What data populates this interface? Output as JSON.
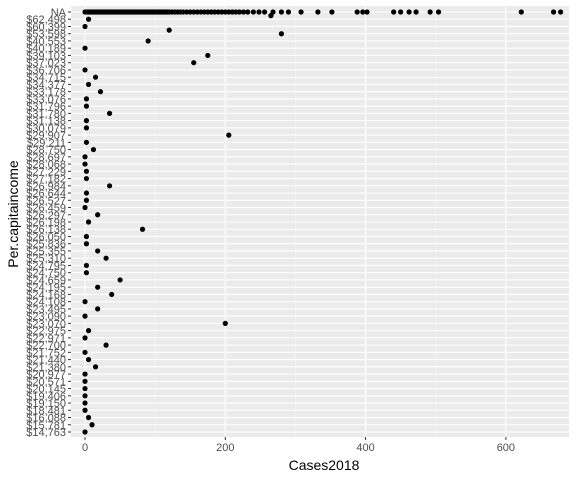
{
  "chart_data": {
    "type": "scatter",
    "xlabel": "Cases2018",
    "ylabel": "Per.capitaincome",
    "xlim": [
      -20,
      690
    ],
    "x_ticks": [
      0,
      200,
      400,
      600
    ],
    "y_categories": [
      "$14,763",
      "$15,781",
      "$16,088",
      "$18,481",
      "$19,150",
      "$19,406",
      "$20,145",
      "$20,571",
      "$20,977",
      "$21,380",
      "$21,440",
      "$21,752",
      "$22,700",
      "$22,971",
      "$22,975",
      "$23,070",
      "$23,090",
      "$23,495",
      "$24,108",
      "$24,168",
      "$24,195",
      "$24,659",
      "$24,750",
      "$24,795",
      "$25,310",
      "$25,355",
      "$25,836",
      "$26,050",
      "$26,138",
      "$26,198",
      "$26,297",
      "$26,459",
      "$26,527",
      "$26,644",
      "$26,984",
      "$27,182",
      "$27,229",
      "$28,068",
      "$28,697",
      "$28,750",
      "$29,211",
      "$29,907",
      "$30,079",
      "$31,138",
      "$31,780",
      "$31,796",
      "$33,076",
      "$33,178",
      "$34,377",
      "$34,715",
      "$36,706",
      "$37,023",
      "$39,103",
      "$40,189",
      "$40,553",
      "$53,598",
      "$60,399",
      "$62,498",
      "NA"
    ],
    "points": [
      {
        "y": "$14,763",
        "x": [
          0
        ]
      },
      {
        "y": "$15,781",
        "x": [
          10
        ]
      },
      {
        "y": "$16,088",
        "x": [
          5
        ]
      },
      {
        "y": "$18,481",
        "x": [
          0
        ]
      },
      {
        "y": "$19,150",
        "x": [
          0
        ]
      },
      {
        "y": "$19,406",
        "x": [
          0
        ]
      },
      {
        "y": "$20,145",
        "x": [
          0
        ]
      },
      {
        "y": "$20,571",
        "x": [
          0
        ]
      },
      {
        "y": "$20,977",
        "x": [
          0
        ]
      },
      {
        "y": "$21,380",
        "x": [
          15
        ]
      },
      {
        "y": "$21,440",
        "x": [
          5
        ]
      },
      {
        "y": "$21,752",
        "x": [
          0
        ]
      },
      {
        "y": "$22,700",
        "x": [
          30
        ]
      },
      {
        "y": "$22,971",
        "x": [
          0
        ]
      },
      {
        "y": "$22,975",
        "x": [
          5
        ]
      },
      {
        "y": "$23,070",
        "x": [
          200
        ]
      },
      {
        "y": "$23,090",
        "x": [
          0
        ]
      },
      {
        "y": "$23,495",
        "x": [
          18
        ]
      },
      {
        "y": "$24,108",
        "x": [
          0
        ]
      },
      {
        "y": "$24,168",
        "x": [
          38
        ]
      },
      {
        "y": "$24,195",
        "x": [
          18
        ]
      },
      {
        "y": "$24,659",
        "x": [
          50
        ]
      },
      {
        "y": "$24,750",
        "x": [
          2
        ]
      },
      {
        "y": "$24,795",
        "x": [
          2
        ]
      },
      {
        "y": "$25,310",
        "x": [
          30
        ]
      },
      {
        "y": "$25,355",
        "x": [
          18
        ]
      },
      {
        "y": "$25,836",
        "x": [
          2
        ]
      },
      {
        "y": "$26,050",
        "x": [
          2
        ]
      },
      {
        "y": "$26,138",
        "x": [
          82
        ]
      },
      {
        "y": "$26,198",
        "x": [
          5
        ]
      },
      {
        "y": "$26,297",
        "x": [
          18
        ]
      },
      {
        "y": "$26,459",
        "x": [
          0
        ]
      },
      {
        "y": "$26,527",
        "x": [
          2
        ]
      },
      {
        "y": "$26,644",
        "x": [
          2
        ]
      },
      {
        "y": "$26,984",
        "x": [
          35
        ]
      },
      {
        "y": "$27,182",
        "x": [
          2
        ]
      },
      {
        "y": "$27,229",
        "x": [
          2
        ]
      },
      {
        "y": "$28,068",
        "x": [
          0
        ]
      },
      {
        "y": "$28,697",
        "x": [
          0
        ]
      },
      {
        "y": "$28,750",
        "x": [
          12
        ]
      },
      {
        "y": "$29,211",
        "x": [
          2
        ]
      },
      {
        "y": "$29,907",
        "x": [
          205
        ]
      },
      {
        "y": "$30,079",
        "x": [
          2
        ]
      },
      {
        "y": "$31,138",
        "x": [
          2
        ]
      },
      {
        "y": "$31,780",
        "x": [
          35
        ]
      },
      {
        "y": "$31,796",
        "x": [
          2
        ]
      },
      {
        "y": "$33,076",
        "x": [
          2
        ]
      },
      {
        "y": "$33,178",
        "x": [
          22
        ]
      },
      {
        "y": "$34,377",
        "x": [
          5
        ]
      },
      {
        "y": "$34,715",
        "x": [
          15
        ]
      },
      {
        "y": "$36,706",
        "x": [
          0
        ]
      },
      {
        "y": "$37,023",
        "x": [
          155
        ]
      },
      {
        "y": "$39,103",
        "x": [
          175
        ]
      },
      {
        "y": "$40,189",
        "x": [
          0
        ]
      },
      {
        "y": "$40,553",
        "x": [
          90
        ]
      },
      {
        "y": "$53,598",
        "x": [
          280
        ]
      },
      {
        "y": "$60,399",
        "x": [
          0
        ]
      },
      {
        "y": "$62,498",
        "x": [
          5
        ]
      },
      {
        "y": "NA",
        "x": [
          0,
          2,
          4,
          6,
          8,
          10,
          12,
          14,
          16,
          18,
          20,
          22,
          24,
          26,
          28,
          30,
          32,
          34,
          36,
          38,
          40,
          42,
          44,
          46,
          48,
          50,
          52,
          54,
          56,
          58,
          60,
          62,
          64,
          66,
          68,
          70,
          72,
          74,
          76,
          78,
          80,
          82,
          84,
          86,
          88,
          90,
          92,
          94,
          96,
          98,
          100,
          102,
          104,
          106,
          108,
          110,
          112,
          114,
          116,
          118,
          120,
          124,
          128,
          132,
          136,
          140,
          145,
          150,
          155,
          160,
          165,
          170,
          175,
          180,
          185,
          190,
          195,
          200,
          205,
          210,
          215,
          220,
          226,
          232,
          240,
          248,
          256,
          268,
          280,
          290,
          308,
          332,
          352,
          388,
          396,
          402,
          440,
          450,
          462,
          472,
          492,
          504,
          622,
          668,
          678
        ]
      }
    ],
    "extra_points": [
      {
        "x": 265,
        "y_between": [
          "$62,498",
          "NA"
        ]
      },
      {
        "x": 120,
        "y_between": [
          "$53,598",
          "$60,399"
        ]
      }
    ],
    "grid": true,
    "legend": "none"
  },
  "y_tick_labels": [
    "$14,763",
    "$15,781",
    "$16,088",
    "$18,481",
    "$19,150",
    "$19,406",
    "$20,145",
    "$20,571",
    "$20,977",
    "$21,380",
    "$21,440",
    "$21,752",
    "$22,700",
    "$22,971",
    "$22,975",
    "$23,070",
    "$23,090",
    "$23,495",
    "$24,108",
    "$24,168",
    "$24,195",
    "$24,659",
    "$24,750",
    "$24,795",
    "$25,310",
    "$25,355",
    "$25,836",
    "$26,050",
    "$26,138",
    "$26,198",
    "$26,297",
    "$26,459",
    "$26,527",
    "$26,644",
    "$26,984",
    "$27,182",
    "$27,229",
    "$28,068",
    "$28,697",
    "$28,750",
    "$29,211",
    "$29,907",
    "$30,079",
    "$31,138",
    "$31,780",
    "$31,796",
    "$33,076",
    "$33,178",
    "$34,377",
    "$34,715",
    "$36,706",
    "$37,023",
    "$39,103",
    "$40,189",
    "$40,553",
    "$53,598",
    "$60,399",
    "$62,498",
    "NA"
  ],
  "x_tick_labels": [
    "0",
    "200",
    "400",
    "600"
  ],
  "colors": {
    "panel": "#ebebeb",
    "grid_major": "#ffffff",
    "point": "#000000",
    "tick_text": "#4d4d4d"
  }
}
